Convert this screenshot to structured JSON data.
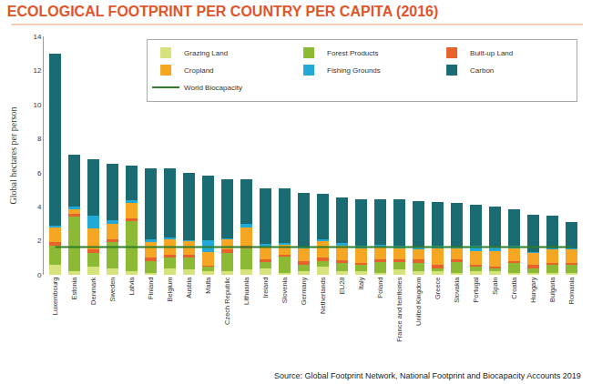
{
  "chart_data": {
    "type": "bar",
    "stacked": true,
    "title": "ECOLOGICAL FOOTPRINT PER COUNTRY PER CAPITA (2016)",
    "y_label": "Global hectares per person",
    "annotation": "Source: Global Footprint Network, National Footprint and Biocapacity Accounts 2019",
    "legend": "top-right",
    "grid": false,
    "ylim": [
      0,
      14
    ],
    "yticks": [
      0,
      2,
      4,
      6,
      8,
      10,
      12,
      14
    ],
    "categories": [
      "Luxembourg",
      "Estonia",
      "Denmark",
      "Sweden",
      "Latvia",
      "Finland",
      "Belgium",
      "Austria",
      "Malta",
      "Czech Republic",
      "Lithuania",
      "Ireland",
      "Slovenia",
      "Germany",
      "Netherlands",
      "EU28",
      "Italy",
      "Poland",
      "France and territories",
      "United Kingdom",
      "Greece",
      "Slovakia",
      "Portugal",
      "Spain",
      "Croatia",
      "Hungary",
      "Bulgaria",
      "Romania"
    ],
    "series": [
      {
        "name": "Grazing Land",
        "type": "bar",
        "color": "#d6e27c",
        "values": [
          0.6,
          0.2,
          0.5,
          0.4,
          0.2,
          0.1,
          0.4,
          0.3,
          0.2,
          0.2,
          0.3,
          0.4,
          0.1,
          0.2,
          0.5,
          0.2,
          0.2,
          0.1,
          0.3,
          0.2,
          0.2,
          0.1,
          0.2,
          0.2,
          0.1,
          0.1,
          0.1,
          0.1
        ]
      },
      {
        "name": "Forest Products",
        "type": "bar",
        "color": "#8cba35",
        "values": [
          1.1,
          3.2,
          0.8,
          1.5,
          3.0,
          0.7,
          0.6,
          0.7,
          0.3,
          1.1,
          1.3,
          0.4,
          1.0,
          0.4,
          0.3,
          0.5,
          0.4,
          0.7,
          0.5,
          0.5,
          0.2,
          0.7,
          0.3,
          0.2,
          0.6,
          0.3,
          0.5,
          0.5
        ]
      },
      {
        "name": "Built-up Land",
        "type": "bar",
        "color": "#e8622c",
        "values": [
          0.2,
          0.2,
          0.2,
          0.2,
          0.1,
          0.2,
          0.2,
          0.2,
          0.05,
          0.2,
          0.1,
          0.1,
          0.1,
          0.2,
          0.2,
          0.15,
          0.1,
          0.1,
          0.1,
          0.2,
          0.2,
          0.1,
          0.1,
          0.1,
          0.1,
          0.2,
          0.1,
          0.1
        ]
      },
      {
        "name": "Cropland",
        "type": "bar",
        "color": "#f5a623",
        "values": [
          0.9,
          0.3,
          1.2,
          0.9,
          0.9,
          0.9,
          0.9,
          0.8,
          0.8,
          0.6,
          1.1,
          0.7,
          0.6,
          0.8,
          1.0,
          0.9,
          0.9,
          0.8,
          0.7,
          0.6,
          1.0,
          0.7,
          0.8,
          0.9,
          0.8,
          0.7,
          0.8,
          0.8
        ]
      },
      {
        "name": "Fishing Grounds",
        "type": "bar",
        "color": "#22a9d6",
        "values": [
          0.1,
          0.1,
          0.8,
          0.2,
          0.2,
          0.2,
          0.1,
          0.05,
          0.7,
          0.05,
          0.2,
          0.2,
          0.05,
          0.05,
          0.1,
          0.1,
          0.1,
          0.05,
          0.1,
          0.1,
          0.1,
          0.05,
          0.3,
          0.2,
          0.1,
          0.05,
          0.05,
          0.05
        ]
      },
      {
        "name": "Carbon",
        "type": "bar",
        "color": "#1b6b72",
        "values": [
          10.1,
          3.05,
          3.3,
          3.3,
          2.0,
          4.15,
          4.05,
          3.95,
          3.75,
          3.45,
          2.6,
          3.3,
          3.25,
          3.15,
          2.65,
          2.7,
          2.75,
          2.7,
          2.75,
          2.75,
          2.55,
          2.55,
          2.4,
          2.4,
          2.15,
          2.2,
          1.9,
          1.55
        ]
      },
      {
        "name": "World Biocapacity",
        "type": "line",
        "color": "#2f7d2a",
        "values": [
          1.63,
          1.63,
          1.63,
          1.63,
          1.63,
          1.63,
          1.63,
          1.63,
          1.63,
          1.63,
          1.63,
          1.63,
          1.63,
          1.63,
          1.63,
          1.63,
          1.63,
          1.63,
          1.63,
          1.63,
          1.63,
          1.63,
          1.63,
          1.63,
          1.63,
          1.63,
          1.63,
          1.63
        ]
      }
    ]
  }
}
